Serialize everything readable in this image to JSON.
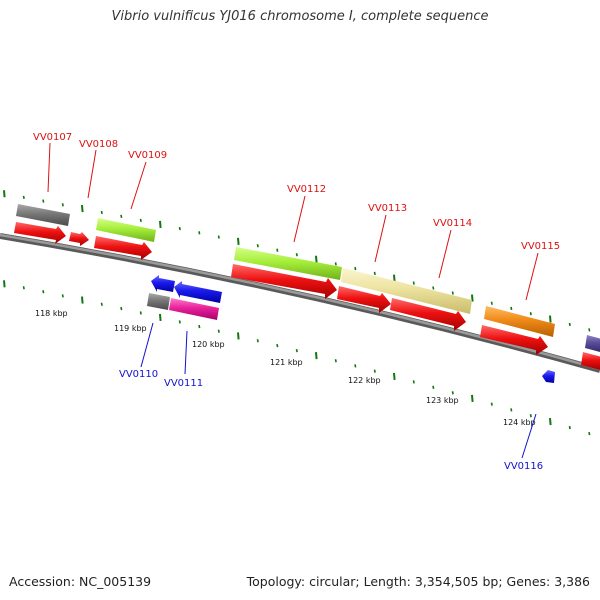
{
  "title": "Vibrio vulnificus YJ016 chromosome I, complete sequence",
  "footer": {
    "accession": "Accession: NC_005139",
    "stats": "Topology: circular; Length: 3,354,505 bp; Genes: 3,386"
  },
  "colors": {
    "forward_label": "#dd1111",
    "reverse_label": "#1111cc",
    "backbone": "#7a7a7a",
    "ticks": "#117711",
    "cds_forward": "#ee1111",
    "cds_reverse": "#1a1aee",
    "feature_gray": "#777777",
    "feature_green": "#a6ee3a",
    "feature_khaki": "#ede3a0",
    "feature_orange": "#f08a1a",
    "feature_magenta": "#e8229a",
    "feature_purple": "#5a4e9a"
  },
  "scale_labels": [
    "118 kbp",
    "119 kbp",
    "120 kbp",
    "121 kbp",
    "122 kbp",
    "123 kbp",
    "124 kbp"
  ],
  "genes_forward": [
    {
      "label": "VV0107"
    },
    {
      "label": "VV0108"
    },
    {
      "label": "VV0109"
    },
    {
      "label": "VV0112"
    },
    {
      "label": "VV0113"
    },
    {
      "label": "VV0114"
    },
    {
      "label": "VV0115"
    }
  ],
  "genes_reverse": [
    {
      "label": "VV0110"
    },
    {
      "label": "VV0111"
    },
    {
      "label": "VV0116"
    }
  ]
}
